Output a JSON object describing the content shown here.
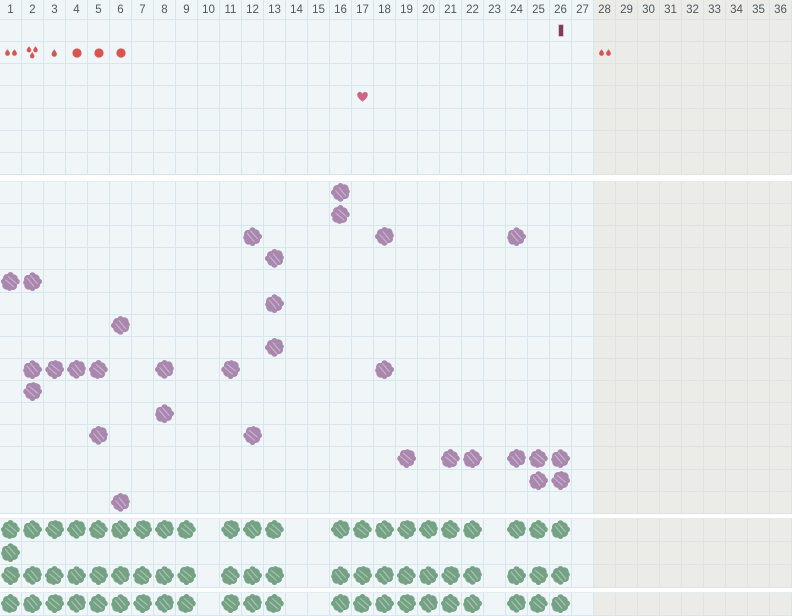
{
  "grid": {
    "day_count": 36,
    "active_day_count": 27,
    "header_labels": [
      "1",
      "2",
      "3",
      "4",
      "5",
      "6",
      "7",
      "8",
      "9",
      "10",
      "11",
      "12",
      "13",
      "14",
      "15",
      "16",
      "17",
      "18",
      "19",
      "20",
      "21",
      "22",
      "23",
      "24",
      "25",
      "26",
      "27",
      "28",
      "29",
      "30",
      "31",
      "32",
      "33",
      "34",
      "35",
      "36"
    ]
  },
  "colors": {
    "page_bg": "#ffffff",
    "active_cell_bg": "#f0f6f7",
    "inactive_cell_bg": "#ebebe8",
    "gridline": "#d5e6ef",
    "inactive_gridline": "#dee3e1",
    "header_text": "#50585e",
    "blood_red": "#d95350",
    "heart_pink": "#ce6287",
    "marker_fill": "#7b4055",
    "marker_border": "#dcc0cc",
    "symptom_purple": "#a987ae",
    "entry_green": "#75a284"
  },
  "icon_legend": {
    "drops2": "two-blood-drops",
    "drops3": "three-blood-drops",
    "drop1": "one-blood-drop",
    "dot": "blood-dot",
    "heart": "heart",
    "marker": "cycle-marker-line",
    "splat-purple": "purple-symptom-splat",
    "splat-green": "green-entry-splat"
  },
  "top_section": {
    "rows": [
      {
        "name": "cycle-marker-row",
        "icons": [
          {
            "col": 26,
            "type": "marker"
          }
        ]
      },
      {
        "name": "bleeding-row",
        "icons": [
          {
            "col": 1,
            "type": "drops2"
          },
          {
            "col": 2,
            "type": "drops3"
          },
          {
            "col": 3,
            "type": "drop1"
          },
          {
            "col": 4,
            "type": "dot"
          },
          {
            "col": 5,
            "type": "dot"
          },
          {
            "col": 6,
            "type": "dot"
          },
          {
            "col": 28,
            "type": "drops2"
          }
        ]
      },
      {
        "name": "empty-row",
        "icons": []
      },
      {
        "name": "heart-row",
        "icons": [
          {
            "col": 17,
            "type": "heart"
          }
        ]
      },
      {
        "name": "empty-row",
        "icons": []
      },
      {
        "name": "empty-row",
        "icons": []
      },
      {
        "name": "empty-row",
        "icons": []
      }
    ]
  },
  "middle_section": {
    "splat_type": "splat-purple",
    "rows": [
      {
        "splats": [
          16
        ]
      },
      {
        "splats": [
          16
        ]
      },
      {
        "splats": [
          12,
          18,
          24
        ]
      },
      {
        "splats": [
          13
        ]
      },
      {
        "splats": [
          1,
          2
        ]
      },
      {
        "splats": [
          13
        ]
      },
      {
        "splats": [
          6
        ]
      },
      {
        "splats": [
          13
        ]
      },
      {
        "splats": [
          2,
          3,
          4,
          5,
          8,
          11,
          18
        ]
      },
      {
        "splats": [
          2
        ]
      },
      {
        "splats": [
          8
        ]
      },
      {
        "splats": [
          5,
          12
        ]
      },
      {
        "splats": [
          19,
          21,
          22,
          24,
          25,
          26
        ]
      },
      {
        "splats": [
          25,
          26
        ]
      },
      {
        "splats": [
          6
        ]
      }
    ]
  },
  "green_section_a": {
    "splat_type": "splat-green",
    "rows": [
      {
        "splats": [
          1,
          2,
          3,
          4,
          5,
          6,
          7,
          8,
          9,
          11,
          12,
          13,
          16,
          17,
          18,
          19,
          20,
          21,
          22,
          24,
          25,
          26
        ]
      },
      {
        "splats": [
          1
        ]
      },
      {
        "splats": [
          1,
          2,
          3,
          4,
          5,
          6,
          7,
          8,
          9,
          11,
          12,
          13,
          16,
          17,
          18,
          19,
          20,
          21,
          22,
          24,
          25,
          26
        ]
      }
    ]
  },
  "green_section_b": {
    "splat_type": "splat-green",
    "rows": [
      {
        "splats": [
          1,
          2,
          3,
          4,
          5,
          6,
          7,
          8,
          9,
          11,
          12,
          13,
          16,
          17,
          18,
          19,
          20,
          21,
          22,
          24,
          25,
          26
        ]
      }
    ]
  }
}
